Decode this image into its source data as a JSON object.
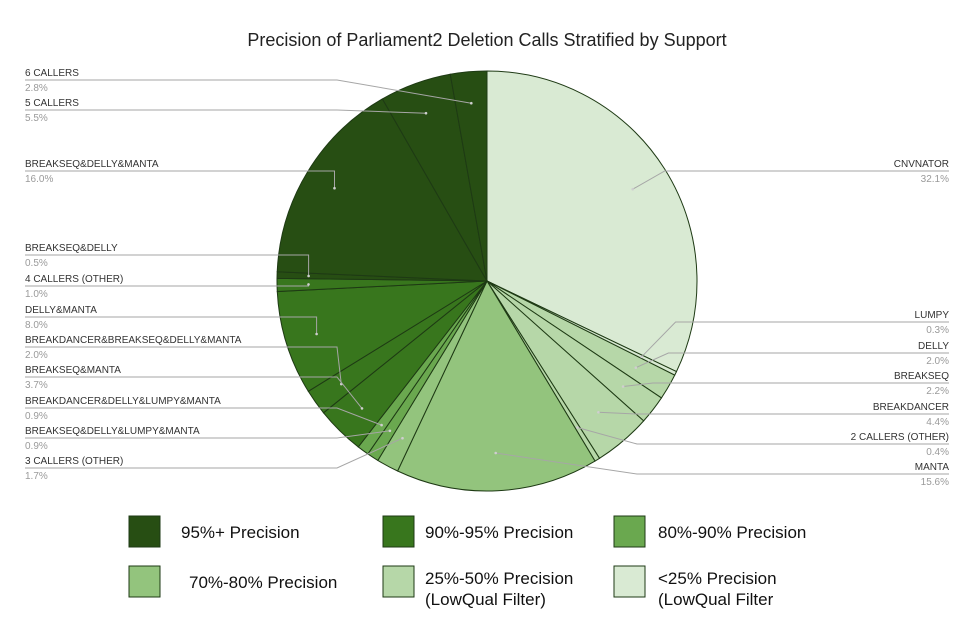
{
  "chart_data": {
    "type": "pie",
    "title": "Precision of Parliament2 Deletion Calls Stratified by Support",
    "slices": [
      {
        "label": "CNVNATOR",
        "value": 32.1,
        "percent_label": "32.1%",
        "color": "#d9ead3"
      },
      {
        "label": "LUMPY",
        "value": 0.3,
        "percent_label": "0.3%",
        "color": "#d9ead3"
      },
      {
        "label": "DELLY",
        "value": 2.0,
        "percent_label": "2.0%",
        "color": "#b6d7a8"
      },
      {
        "label": "BREAKSEQ",
        "value": 2.2,
        "percent_label": "2.2%",
        "color": "#b6d7a8"
      },
      {
        "label": "BREAKDANCER",
        "value": 4.4,
        "percent_label": "4.4%",
        "color": "#b6d7a8"
      },
      {
        "label": "2 CALLERS (OTHER)",
        "value": 0.4,
        "percent_label": "0.4%",
        "color": "#b6d7a8"
      },
      {
        "label": "MANTA",
        "value": 15.6,
        "percent_label": "15.6%",
        "color": "#93c47d"
      },
      {
        "label": "3 CALLERS (OTHER)",
        "value": 1.7,
        "percent_label": "1.7%",
        "color": "#93c47d"
      },
      {
        "label": "BREAKSEQ&DELLY&LUMPY&MANTA",
        "value": 0.9,
        "percent_label": "0.9%",
        "color": "#6aa84f"
      },
      {
        "label": "BREAKDANCER&DELLY&LUMPY&MANTA",
        "value": 0.9,
        "percent_label": "0.9%",
        "color": "#6aa84f"
      },
      {
        "label": "BREAKSEQ&MANTA",
        "value": 3.7,
        "percent_label": "3.7%",
        "color": "#38761d"
      },
      {
        "label": "BREAKDANCER&BREAKSEQ&DELLY&MANTA",
        "value": 2.0,
        "percent_label": "2.0%",
        "color": "#38761d"
      },
      {
        "label": "DELLY&MANTA",
        "value": 8.0,
        "percent_label": "8.0%",
        "color": "#38761d"
      },
      {
        "label": "4 CALLERS (OTHER)",
        "value": 1.0,
        "percent_label": "1.0%",
        "color": "#38761d"
      },
      {
        "label": "BREAKSEQ&DELLY",
        "value": 0.5,
        "percent_label": "0.5%",
        "color": "#274e13"
      },
      {
        "label": "BREAKSEQ&DELLY&MANTA",
        "value": 16.0,
        "percent_label": "16.0%",
        "color": "#274e13"
      },
      {
        "label": "5 CALLERS",
        "value": 5.5,
        "percent_label": "5.5%",
        "color": "#274e13"
      },
      {
        "label": "6 CALLERS",
        "value": 2.8,
        "percent_label": "2.8%",
        "color": "#274e13"
      }
    ],
    "legend": [
      {
        "lines": [
          "95%+ Precision"
        ],
        "color": "#274e13"
      },
      {
        "lines": [
          "90%-95% Precision"
        ],
        "color": "#38761d"
      },
      {
        "lines": [
          "80%-90% Precision"
        ],
        "color": "#6aa84f"
      },
      {
        "lines": [
          "70%-80% Precision"
        ],
        "color": "#93c47d"
      },
      {
        "lines": [
          "25%-50% Precision",
          "(LowQual Filter)"
        ],
        "color": "#b6d7a8"
      },
      {
        "lines": [
          "<25% Precision",
          "(LowQual Filter"
        ],
        "color": "#d9ead3"
      }
    ]
  }
}
